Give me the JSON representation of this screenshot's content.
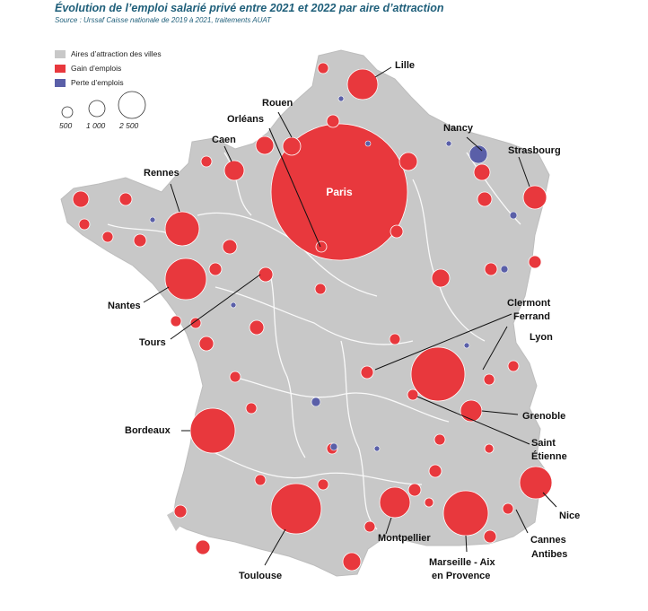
{
  "header": {
    "title": "Évolution de l’emploi salarié privé entre 2021 et 2022 par aire d’attraction",
    "source": "Source : Urssaf Caisse nationale de 2019 à 2021, traitements AUAT"
  },
  "legend": {
    "items": [
      {
        "label": "Aires d’attraction des villes",
        "color": "#c8c8c8"
      },
      {
        "label": "Gain d’emplois",
        "color": "#e8383d"
      },
      {
        "label": "Perte d’emplois",
        "color": "#5a5fa8"
      }
    ],
    "sizes": [
      "500",
      "1 000",
      "2 500"
    ]
  },
  "colors": {
    "area": "#c8c8c8",
    "gain": "#e8383d",
    "loss": "#5a5fa8",
    "title": "#1f5f7a"
  },
  "cities": [
    {
      "name": "Paris"
    },
    {
      "name": "Lille"
    },
    {
      "name": "Rouen"
    },
    {
      "name": "Orléans"
    },
    {
      "name": "Caen"
    },
    {
      "name": "Nancy"
    },
    {
      "name": "Strasbourg"
    },
    {
      "name": "Rennes"
    },
    {
      "name": "Nantes"
    },
    {
      "name": "Tours"
    },
    {
      "name": "Clermont"
    },
    {
      "name": "Ferrand"
    },
    {
      "name": "Lyon"
    },
    {
      "name": "Grenoble"
    },
    {
      "name": "Bordeaux"
    },
    {
      "name": "Saint"
    },
    {
      "name": "Étienne"
    },
    {
      "name": "Nice"
    },
    {
      "name": "Cannes"
    },
    {
      "name": "Antibes"
    },
    {
      "name": "Toulouse"
    },
    {
      "name": "Montpellier"
    },
    {
      "name": "Marseille - Aix"
    },
    {
      "name": "en Provence"
    }
  ]
}
